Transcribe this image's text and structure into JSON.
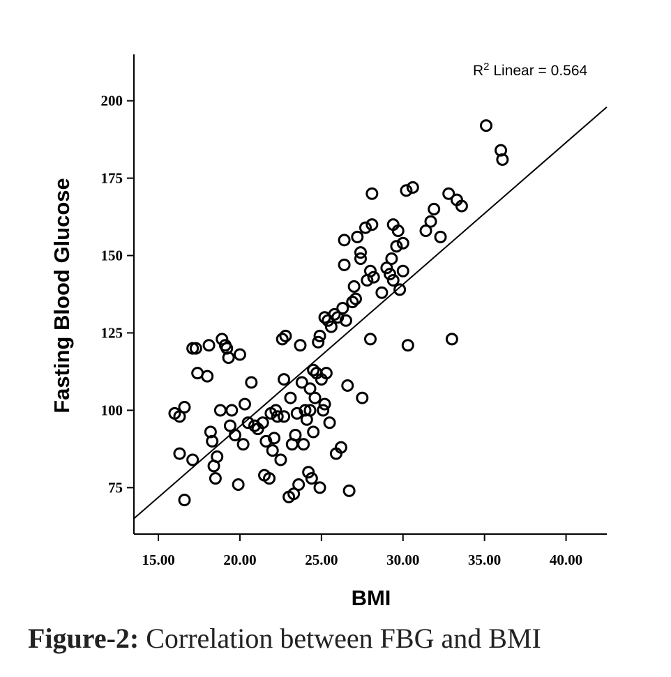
{
  "chart_data": {
    "type": "scatter",
    "xlabel": "BMI",
    "ylabel": "Fasting Blood Glucose",
    "xlim": [
      13.5,
      42.5
    ],
    "ylim": [
      60,
      215
    ],
    "x_ticks": [
      15,
      20,
      25,
      30,
      35,
      40
    ],
    "x_tick_labels": [
      "15.00",
      "20.00",
      "25.00",
      "30.00",
      "35.00",
      "40.00"
    ],
    "y_ticks": [
      75,
      100,
      125,
      150,
      175,
      200
    ],
    "y_tick_labels": [
      "75",
      "100",
      "125",
      "150",
      "175",
      "200"
    ],
    "grid": false,
    "fit_line": {
      "x0": 13.5,
      "y0": 65,
      "x1": 42.5,
      "y1": 198
    },
    "r2": {
      "prefix": "R",
      "sup": "2",
      "text": " Linear = 0.564"
    },
    "points": [
      [
        16.0,
        99
      ],
      [
        16.3,
        98
      ],
      [
        16.6,
        101
      ],
      [
        16.3,
        86
      ],
      [
        16.6,
        71
      ],
      [
        17.1,
        84
      ],
      [
        17.1,
        120
      ],
      [
        17.3,
        120
      ],
      [
        17.4,
        112
      ],
      [
        18.0,
        111
      ],
      [
        18.1,
        121
      ],
      [
        18.2,
        93
      ],
      [
        18.3,
        90
      ],
      [
        18.4,
        82
      ],
      [
        18.5,
        78
      ],
      [
        18.6,
        85
      ],
      [
        18.8,
        100
      ],
      [
        18.9,
        123
      ],
      [
        19.1,
        121
      ],
      [
        19.3,
        117
      ],
      [
        19.4,
        95
      ],
      [
        19.5,
        100
      ],
      [
        19.2,
        120
      ],
      [
        19.7,
        92
      ],
      [
        19.9,
        76
      ],
      [
        20.0,
        118
      ],
      [
        20.2,
        89
      ],
      [
        20.3,
        102
      ],
      [
        20.5,
        96
      ],
      [
        20.7,
        109
      ],
      [
        20.9,
        95
      ],
      [
        21.1,
        94
      ],
      [
        21.4,
        96
      ],
      [
        21.5,
        79
      ],
      [
        21.6,
        90
      ],
      [
        21.8,
        78
      ],
      [
        21.9,
        99
      ],
      [
        22.1,
        91
      ],
      [
        22.0,
        87
      ],
      [
        22.3,
        98
      ],
      [
        22.2,
        100
      ],
      [
        22.5,
        84
      ],
      [
        22.7,
        98
      ],
      [
        22.6,
        123
      ],
      [
        22.8,
        124
      ],
      [
        22.7,
        110
      ],
      [
        23.0,
        72
      ],
      [
        23.1,
        104
      ],
      [
        23.2,
        89
      ],
      [
        23.3,
        73
      ],
      [
        23.4,
        92
      ],
      [
        23.5,
        99
      ],
      [
        23.6,
        76
      ],
      [
        23.7,
        121
      ],
      [
        23.8,
        109
      ],
      [
        23.9,
        89
      ],
      [
        24.0,
        100
      ],
      [
        24.1,
        97
      ],
      [
        24.2,
        80
      ],
      [
        24.3,
        100
      ],
      [
        24.3,
        107
      ],
      [
        24.4,
        78
      ],
      [
        24.5,
        113
      ],
      [
        24.6,
        104
      ],
      [
        24.5,
        93
      ],
      [
        24.7,
        112
      ],
      [
        24.8,
        122
      ],
      [
        24.9,
        124
      ],
      [
        25.0,
        110
      ],
      [
        25.1,
        100
      ],
      [
        25.2,
        102
      ],
      [
        24.9,
        75
      ],
      [
        25.2,
        130
      ],
      [
        25.3,
        112
      ],
      [
        25.4,
        129
      ],
      [
        25.5,
        96
      ],
      [
        25.6,
        127
      ],
      [
        25.8,
        131
      ],
      [
        25.9,
        86
      ],
      [
        26.0,
        130
      ],
      [
        26.2,
        88
      ],
      [
        26.3,
        133
      ],
      [
        26.4,
        147
      ],
      [
        26.4,
        155
      ],
      [
        26.5,
        129
      ],
      [
        26.6,
        108
      ],
      [
        26.7,
        74
      ],
      [
        26.9,
        135
      ],
      [
        27.0,
        140
      ],
      [
        27.1,
        136
      ],
      [
        27.2,
        156
      ],
      [
        27.4,
        151
      ],
      [
        27.4,
        149
      ],
      [
        27.5,
        104
      ],
      [
        27.7,
        159
      ],
      [
        27.8,
        142
      ],
      [
        28.0,
        145
      ],
      [
        28.0,
        123
      ],
      [
        28.1,
        170
      ],
      [
        28.1,
        160
      ],
      [
        28.2,
        143
      ],
      [
        28.7,
        138
      ],
      [
        29.0,
        146
      ],
      [
        29.2,
        144
      ],
      [
        29.3,
        149
      ],
      [
        29.4,
        160
      ],
      [
        29.4,
        142
      ],
      [
        29.6,
        153
      ],
      [
        29.7,
        158
      ],
      [
        29.8,
        139
      ],
      [
        30.0,
        145
      ],
      [
        30.0,
        154
      ],
      [
        30.2,
        171
      ],
      [
        30.3,
        121
      ],
      [
        30.6,
        172
      ],
      [
        31.4,
        158
      ],
      [
        31.7,
        161
      ],
      [
        31.9,
        165
      ],
      [
        32.3,
        156
      ],
      [
        32.8,
        170
      ],
      [
        33.0,
        123
      ],
      [
        33.3,
        168
      ],
      [
        33.6,
        166
      ],
      [
        35.1,
        192
      ],
      [
        36.0,
        184
      ],
      [
        36.1,
        181
      ]
    ]
  },
  "caption": {
    "lead": "Figure-2:",
    "text": " Correlation between FBG and BMI"
  }
}
